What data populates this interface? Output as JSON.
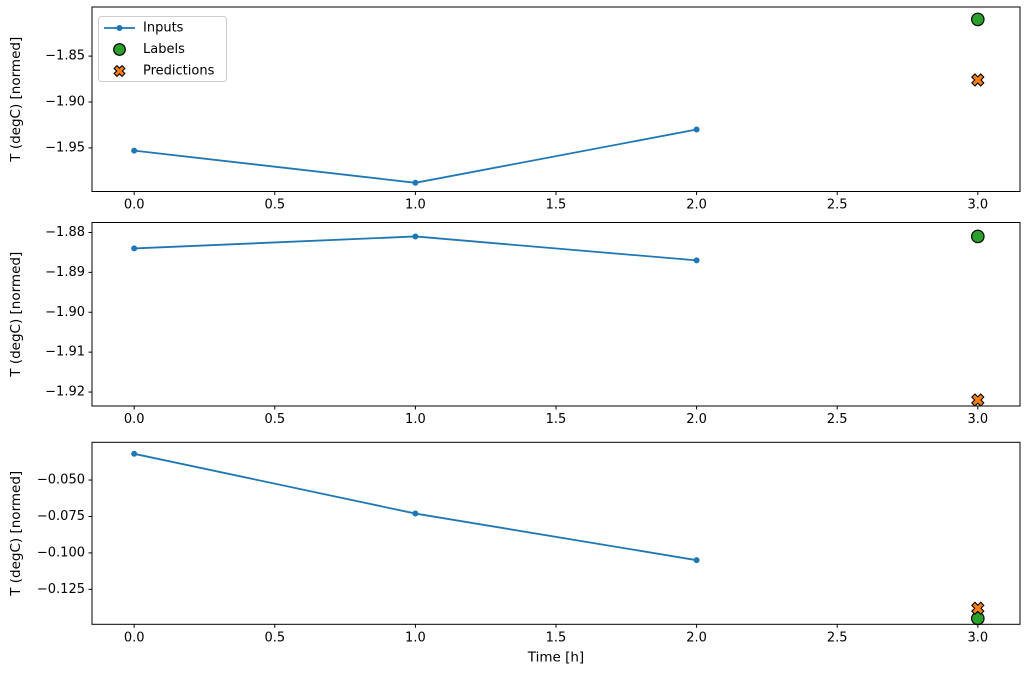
{
  "figure": {
    "background": "#ffffff",
    "xlabel": "Time [h]",
    "ylabel": "T (degC) [normed]",
    "colors": {
      "inputs": "#1f77b4",
      "labels": "#2ca02c",
      "predictions": "#ff7f0e",
      "marker_edge": "#000000",
      "axis": "#000000",
      "legend_border": "#cccccc"
    },
    "legend": {
      "position": "upper-left-of-first-subplot",
      "items": [
        {
          "label": "Inputs",
          "marker": "line-dot",
          "color": "#1f77b4"
        },
        {
          "label": "Labels",
          "marker": "circle",
          "color": "#2ca02c"
        },
        {
          "label": "Predictions",
          "marker": "X",
          "color": "#ff7f0e"
        }
      ]
    }
  },
  "chart_data": [
    {
      "type": "line",
      "title": "",
      "xlabel": "",
      "ylabel": "T (degC) [normed]",
      "xlim": [
        -0.15,
        3.15
      ],
      "ylim": [
        -1.9975,
        -1.7965
      ],
      "xticks": [
        0.0,
        0.5,
        1.0,
        1.5,
        2.0,
        2.5,
        3.0
      ],
      "xtick_labels": [
        "0.0",
        "0.5",
        "1.0",
        "1.5",
        "2.0",
        "2.5",
        "3.0"
      ],
      "yticks": [
        -1.85,
        -1.9,
        -1.95
      ],
      "ytick_labels": [
        "−1.85",
        "−1.90",
        "−1.95"
      ],
      "grid": false,
      "show_legend": true,
      "series": [
        {
          "name": "Inputs",
          "kind": "line",
          "marker": "dot",
          "color": "#1f77b4",
          "x": [
            0,
            1,
            2
          ],
          "y": [
            -1.953,
            -1.988,
            -1.93
          ]
        },
        {
          "name": "Labels",
          "kind": "scatter",
          "marker": "circle",
          "color": "#2ca02c",
          "x": [
            3
          ],
          "y": [
            -1.81
          ]
        },
        {
          "name": "Predictions",
          "kind": "scatter",
          "marker": "X",
          "color": "#ff7f0e",
          "x": [
            3
          ],
          "y": [
            -1.876
          ]
        }
      ]
    },
    {
      "type": "line",
      "title": "",
      "xlabel": "",
      "ylabel": "T (degC) [normed]",
      "xlim": [
        -0.15,
        3.15
      ],
      "ylim": [
        -1.9235,
        -1.8775
      ],
      "xticks": [
        0.0,
        0.5,
        1.0,
        1.5,
        2.0,
        2.5,
        3.0
      ],
      "xtick_labels": [
        "0.0",
        "0.5",
        "1.0",
        "1.5",
        "2.0",
        "2.5",
        "3.0"
      ],
      "yticks": [
        -1.88,
        -1.89,
        -1.9,
        -1.91,
        -1.92
      ],
      "ytick_labels": [
        "−1.88",
        "−1.89",
        "−1.90",
        "−1.91",
        "−1.92"
      ],
      "grid": false,
      "show_legend": false,
      "series": [
        {
          "name": "Inputs",
          "kind": "line",
          "marker": "dot",
          "color": "#1f77b4",
          "x": [
            0,
            1,
            2
          ],
          "y": [
            -1.884,
            -1.881,
            -1.887
          ]
        },
        {
          "name": "Labels",
          "kind": "scatter",
          "marker": "circle",
          "color": "#2ca02c",
          "x": [
            3
          ],
          "y": [
            -1.881
          ]
        },
        {
          "name": "Predictions",
          "kind": "scatter",
          "marker": "X",
          "color": "#ff7f0e",
          "x": [
            3
          ],
          "y": [
            -1.922
          ]
        }
      ]
    },
    {
      "type": "line",
      "title": "",
      "xlabel": "Time [h]",
      "ylabel": "T (degC) [normed]",
      "xlim": [
        -0.15,
        3.15
      ],
      "ylim": [
        -0.149,
        -0.0241
      ],
      "xticks": [
        0.0,
        0.5,
        1.0,
        1.5,
        2.0,
        2.5,
        3.0
      ],
      "xtick_labels": [
        "0.0",
        "0.5",
        "1.0",
        "1.5",
        "2.0",
        "2.5",
        "3.0"
      ],
      "yticks": [
        -0.05,
        -0.075,
        -0.1,
        -0.125
      ],
      "ytick_labels": [
        "−0.050",
        "−0.075",
        "−0.100",
        "−0.125"
      ],
      "grid": false,
      "show_legend": false,
      "series": [
        {
          "name": "Inputs",
          "kind": "line",
          "marker": "dot",
          "color": "#1f77b4",
          "x": [
            0,
            1,
            2
          ],
          "y": [
            -0.032,
            -0.073,
            -0.105
          ]
        },
        {
          "name": "Labels",
          "kind": "scatter",
          "marker": "circle",
          "color": "#2ca02c",
          "x": [
            3
          ],
          "y": [
            -0.145
          ]
        },
        {
          "name": "Predictions",
          "kind": "scatter",
          "marker": "X",
          "color": "#ff7f0e",
          "x": [
            3
          ],
          "y": [
            -0.138
          ]
        }
      ]
    }
  ]
}
